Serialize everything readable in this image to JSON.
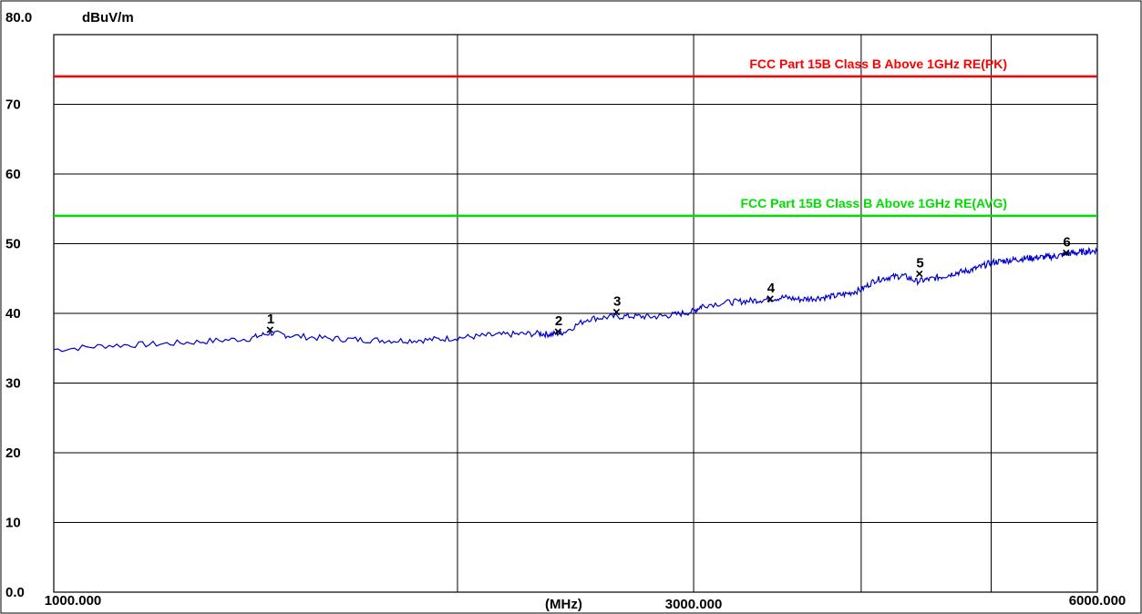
{
  "chart_data": {
    "type": "line",
    "title": "",
    "ylabel": "dBuV/m",
    "xlabel": "(MHz)",
    "ylim": [
      0,
      80
    ],
    "xlim": [
      1000,
      6000
    ],
    "x_scale": "log",
    "grid": true,
    "y_ticks": [
      {
        "value": 80,
        "label": "80.0"
      },
      {
        "value": 70,
        "label": "70"
      },
      {
        "value": 60,
        "label": "60"
      },
      {
        "value": 50,
        "label": "50"
      },
      {
        "value": 40,
        "label": "40"
      },
      {
        "value": 30,
        "label": "30"
      },
      {
        "value": 20,
        "label": "20"
      },
      {
        "value": 10,
        "label": "10"
      },
      {
        "value": 0,
        "label": "0.0"
      }
    ],
    "x_ticks": [
      {
        "value": 1000,
        "label": "1000.000"
      },
      {
        "value": 3000,
        "label": "3000.000"
      },
      {
        "value": 6000,
        "label": "6000.000"
      }
    ],
    "x_gridlines": [
      1000,
      2000,
      3000,
      4000,
      5000,
      6000
    ],
    "limits": [
      {
        "name": "FCC Part 15B Class B Above 1GHz RE(PK)",
        "value": 74,
        "color": "#ff0000"
      },
      {
        "name": "FCC Part 15B Class B Above 1GHz RE(AVG)",
        "value": 54,
        "color": "#00dd00"
      }
    ],
    "series": [
      {
        "color": "#0000cc",
        "x": [
          1000,
          1100,
          1200,
          1300,
          1400,
          1450,
          1500,
          1600,
          1700,
          1800,
          1900,
          2000,
          2100,
          2200,
          2300,
          2350,
          2400,
          2500,
          2600,
          2700,
          2800,
          2900,
          3000,
          3050,
          3200,
          3300,
          3400,
          3500,
          3600,
          3700,
          3800,
          3900,
          4000,
          4100,
          4200,
          4300,
          4400,
          4500,
          4600,
          4700,
          4800,
          4900,
          5000,
          5100,
          5200,
          5300,
          5400,
          5500,
          5600,
          5700,
          5800,
          5900,
          6000
        ],
        "y": [
          34.8,
          35.4,
          35.6,
          36.0,
          36.4,
          37.2,
          36.8,
          36.4,
          36.2,
          36.1,
          36.2,
          36.5,
          36.8,
          37.0,
          37.1,
          37.0,
          37.3,
          39.2,
          39.5,
          39.6,
          39.5,
          39.8,
          40.3,
          41.2,
          41.6,
          41.8,
          42.0,
          42.3,
          42.0,
          42.2,
          42.4,
          42.8,
          43.4,
          44.8,
          45.2,
          45.4,
          44.6,
          44.9,
          45.3,
          45.8,
          46.1,
          46.6,
          47.3,
          47.5,
          47.7,
          47.9,
          48.0,
          48.1,
          48.2,
          48.6,
          48.7,
          48.9,
          49.0
        ]
      }
    ],
    "markers": [
      {
        "label": "1",
        "x": 1451,
        "y": 37.8
      },
      {
        "label": "2",
        "x": 2379,
        "y": 37.5
      },
      {
        "label": "3",
        "x": 2630,
        "y": 40.3
      },
      {
        "label": "4",
        "x": 3425,
        "y": 42.2
      },
      {
        "label": "5",
        "x": 4425,
        "y": 45.8
      },
      {
        "label": "6",
        "x": 5692,
        "y": 48.8
      }
    ]
  }
}
